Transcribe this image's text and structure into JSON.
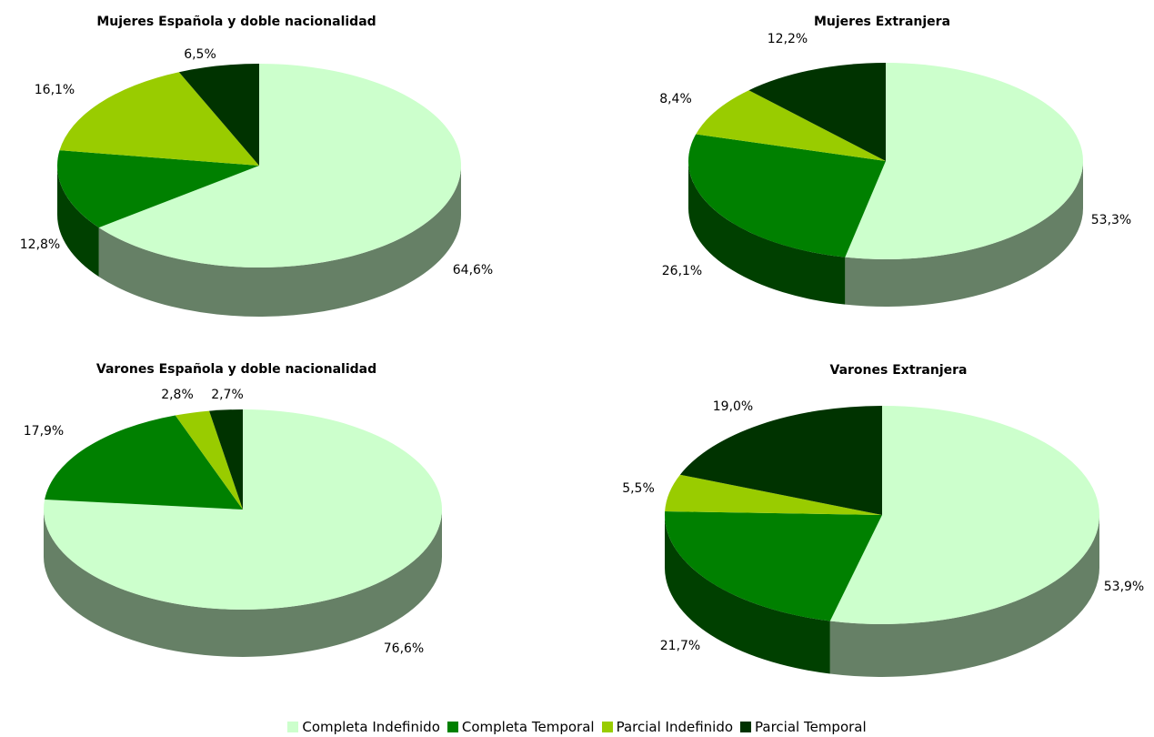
{
  "colors": {
    "Completa Indefinido": {
      "top": "#ccffcc",
      "side": "#668066"
    },
    "Completa Temporal": {
      "top": "#008000",
      "side": "#004000"
    },
    "Parcial Indefinido": {
      "top": "#99cc00",
      "side": "#4d6600"
    },
    "Parcial Temporal": {
      "top": "#003300",
      "side": "#001a00"
    }
  },
  "chart_data": [
    {
      "type": "pie",
      "title": "Mujeres Española y doble nacionalidad",
      "categories": [
        "Completa Indefinido",
        "Completa Temporal",
        "Parcial Indefinido",
        "Parcial Temporal"
      ],
      "values": [
        64.6,
        12.8,
        16.1,
        6.5
      ],
      "labels": [
        "64,6%",
        "12,8%",
        "16,1%",
        "6,5%"
      ]
    },
    {
      "type": "pie",
      "title": "Mujeres Extranjera",
      "categories": [
        "Completa Indefinido",
        "Completa Temporal",
        "Parcial Indefinido",
        "Parcial Temporal"
      ],
      "values": [
        53.3,
        26.1,
        8.4,
        12.2
      ],
      "labels": [
        "53,3%",
        "26,1%",
        "8,4%",
        "12,2%"
      ]
    },
    {
      "type": "pie",
      "title": "Varones Española y doble nacionalidad",
      "categories": [
        "Completa Indefinido",
        "Completa Temporal",
        "Parcial Indefinido",
        "Parcial Temporal"
      ],
      "values": [
        76.6,
        17.9,
        2.8,
        2.7
      ],
      "labels": [
        "76,6%",
        "17,9%",
        "2,8%",
        "2,7%"
      ]
    },
    {
      "type": "pie",
      "title": "Varones Extranjera",
      "categories": [
        "Completa Indefinido",
        "Completa Temporal",
        "Parcial Indefinido",
        "Parcial Temporal"
      ],
      "values": [
        53.9,
        21.7,
        5.5,
        19.0
      ],
      "labels": [
        "53,9%",
        "21,7%",
        "5,5%",
        "19,0%"
      ]
    }
  ],
  "legend": {
    "items": [
      "Completa Indefinido",
      "Completa Temporal",
      "Parcial Indefinido",
      "Parcial Temporal"
    ]
  }
}
